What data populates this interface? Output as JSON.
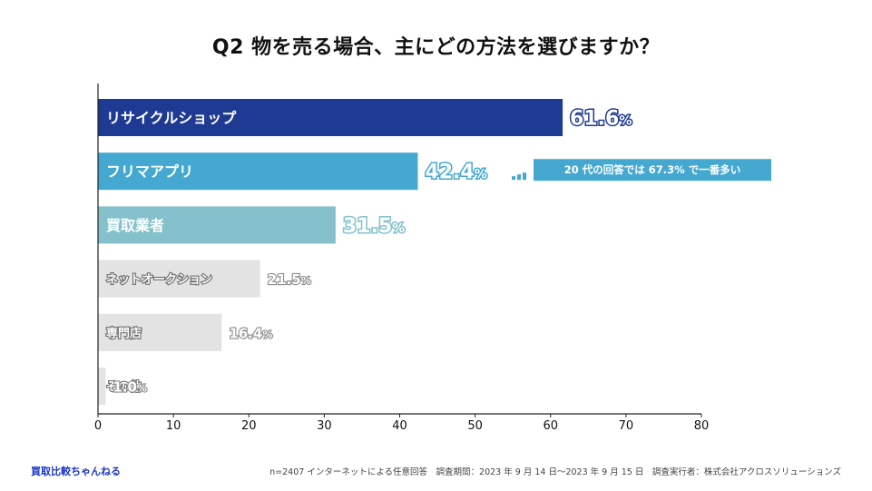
{
  "page": {
    "title": "Q2 物を売る場合、主にどの方法を選びますか？",
    "brand": "買取比較ちゃんねる",
    "footnote": "n=2407 インターネットによる任意回答　調査期間：2023 年 9 月 14 日〜2023 年 9 月 15 日　調査実行者：株式会社アクロスソリューションズ"
  },
  "chart_data": {
    "type": "bar",
    "orientation": "horizontal",
    "title": "Q2 物を売る場合、主にどの方法を選びますか？",
    "categories": [
      "リサイクルショップ",
      "フリマアプリ",
      "買取業者",
      "ネットオークション",
      "専門店",
      "その他"
    ],
    "values": [
      61.6,
      42.4,
      31.5,
      21.5,
      16.4,
      1.0
    ],
    "value_labels": [
      "61.6",
      "42.4",
      "31.5",
      "21.5",
      "16.4",
      "1.0"
    ],
    "value_suffix": "%",
    "colors": [
      "#1f3a93",
      "#45a8d1",
      "#84c1cc",
      "#e3e3e3",
      "#e3e3e3",
      "#e3e3e3"
    ],
    "xlim": [
      0,
      80
    ],
    "xticks": [
      0,
      10,
      20,
      30,
      40,
      50,
      60,
      70,
      80
    ],
    "xlabel": "",
    "ylabel": "",
    "annotation": {
      "category_index": 1,
      "text": "20 代の回答では 67.3% で一番多い",
      "color": "#45a8d1"
    }
  }
}
